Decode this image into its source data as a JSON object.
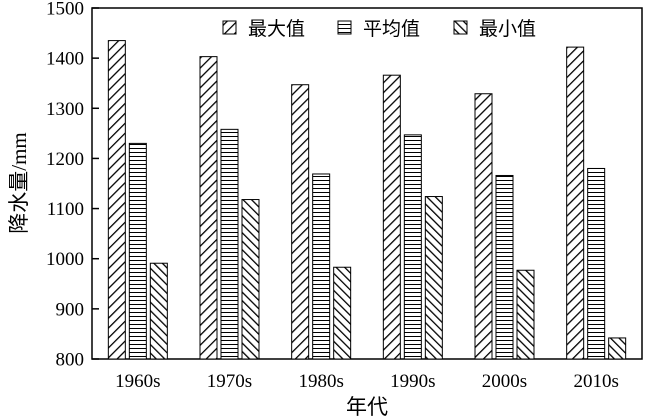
{
  "chart_data": {
    "type": "bar",
    "title": "",
    "xlabel": "年代",
    "ylabel": "降水量/mm",
    "categories": [
      "1960s",
      "1970s",
      "1980s",
      "1990s",
      "2000s",
      "2010s"
    ],
    "series": [
      {
        "name": "最大值",
        "pattern": "diagonal-up",
        "values": [
          1435,
          1403,
          1347,
          1366,
          1329,
          1422
        ]
      },
      {
        "name": "平均值",
        "pattern": "horizontal",
        "values": [
          1230,
          1258,
          1169,
          1247,
          1166,
          1180
        ]
      },
      {
        "name": "最小值",
        "pattern": "diagonal-down",
        "values": [
          991,
          1118,
          983,
          1124,
          977,
          842
        ]
      }
    ],
    "ylim": [
      800,
      1500
    ],
    "yticks": [
      800,
      900,
      1000,
      1100,
      1200,
      1300,
      1400,
      1500
    ],
    "grid": false,
    "legend_position": "top-right",
    "colors": {
      "bar_stroke": "#000000",
      "hatch": "#000000",
      "background": "#ffffff"
    }
  }
}
